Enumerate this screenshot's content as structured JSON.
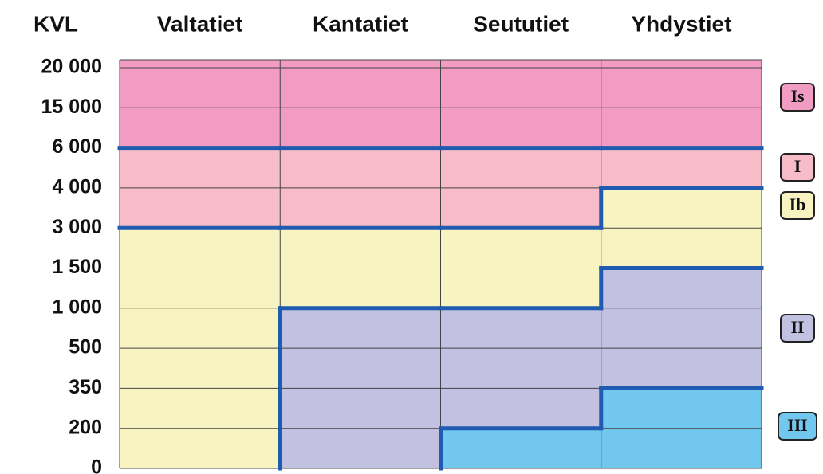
{
  "header": {
    "title": "KVL",
    "columns": [
      "Valtatiet",
      "Kantatiet",
      "Seututiet",
      "Yhdystiet"
    ]
  },
  "levels": [
    "20 000",
    "15 000",
    "6 000",
    "4 000",
    "3 000",
    "1 500",
    "1 000",
    "500",
    "350",
    "200",
    "0"
  ],
  "classes": [
    {
      "label": "Is",
      "color": "#f29bc3"
    },
    {
      "label": "I",
      "color": "#f7bcc8"
    },
    {
      "label": "Ib",
      "color": "#f8f4c2"
    },
    {
      "label": "II",
      "color": "#c3c1e1"
    },
    {
      "label": "III",
      "color": "#71c7ee"
    }
  ],
  "columns": [
    {
      "bands": [
        {
          "class": "Is",
          "to": "6 000"
        },
        {
          "class": "I",
          "to": "3 000"
        },
        {
          "class": "Ib",
          "to": "0"
        }
      ]
    },
    {
      "bands": [
        {
          "class": "Is",
          "to": "6 000"
        },
        {
          "class": "I",
          "to": "3 000"
        },
        {
          "class": "Ib",
          "to": "1 000"
        },
        {
          "class": "II",
          "to": "0"
        }
      ]
    },
    {
      "bands": [
        {
          "class": "Is",
          "to": "6 000"
        },
        {
          "class": "I",
          "to": "3 000"
        },
        {
          "class": "Ib",
          "to": "1 000"
        },
        {
          "class": "II",
          "to": "200"
        },
        {
          "class": "III",
          "to": "0"
        }
      ]
    },
    {
      "bands": [
        {
          "class": "Is",
          "to": "6 000"
        },
        {
          "class": "I",
          "to": "4 000"
        },
        {
          "class": "Ib",
          "to": "1 500"
        },
        {
          "class": "II",
          "to": "350"
        },
        {
          "class": "III",
          "to": "0"
        }
      ]
    }
  ]
}
